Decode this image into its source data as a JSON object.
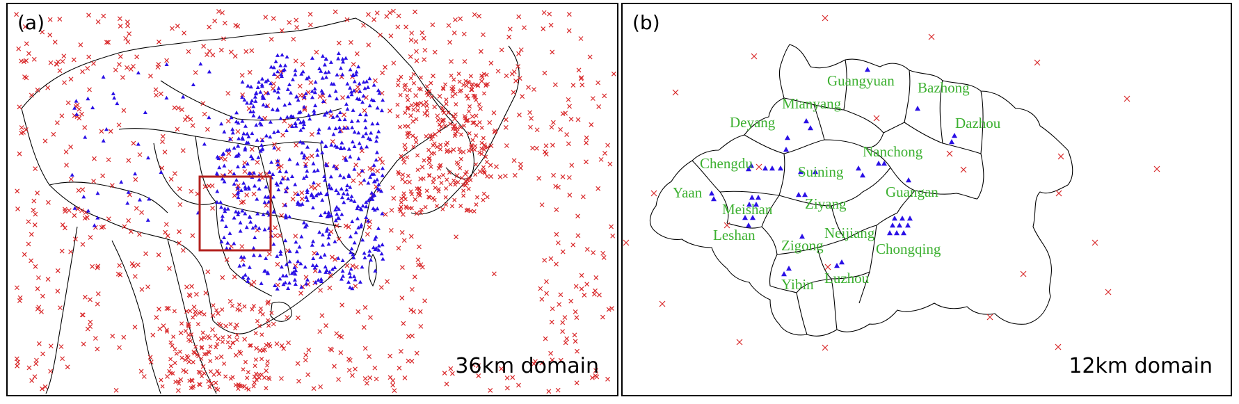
{
  "colors": {
    "surface_station": "#d9282a",
    "air_quality_station": "#2a10e6",
    "city_label": "#3cb030",
    "boundary": "#000000",
    "inner_domain_box": "#b3201d"
  },
  "markers": {
    "surface_station": "red-cross-marker",
    "air_quality_station": "blue-triangle-marker"
  },
  "panel_a": {
    "label": "(a)",
    "domain_label": "36km domain"
  },
  "panel_b": {
    "label": "(b)",
    "domain_label": "12km domain",
    "cities": [
      "Guangyuan",
      "Bazhong",
      "Mianyang",
      "Dazhou",
      "Deyang",
      "Nanchong",
      "Chengdu",
      "Suining",
      "Yaan",
      "Guangan",
      "Ziyang",
      "Meishan",
      "Neijiang",
      "Leshan",
      "Zigong",
      "Chongqing",
      "Yibin",
      "Luzhou"
    ]
  }
}
